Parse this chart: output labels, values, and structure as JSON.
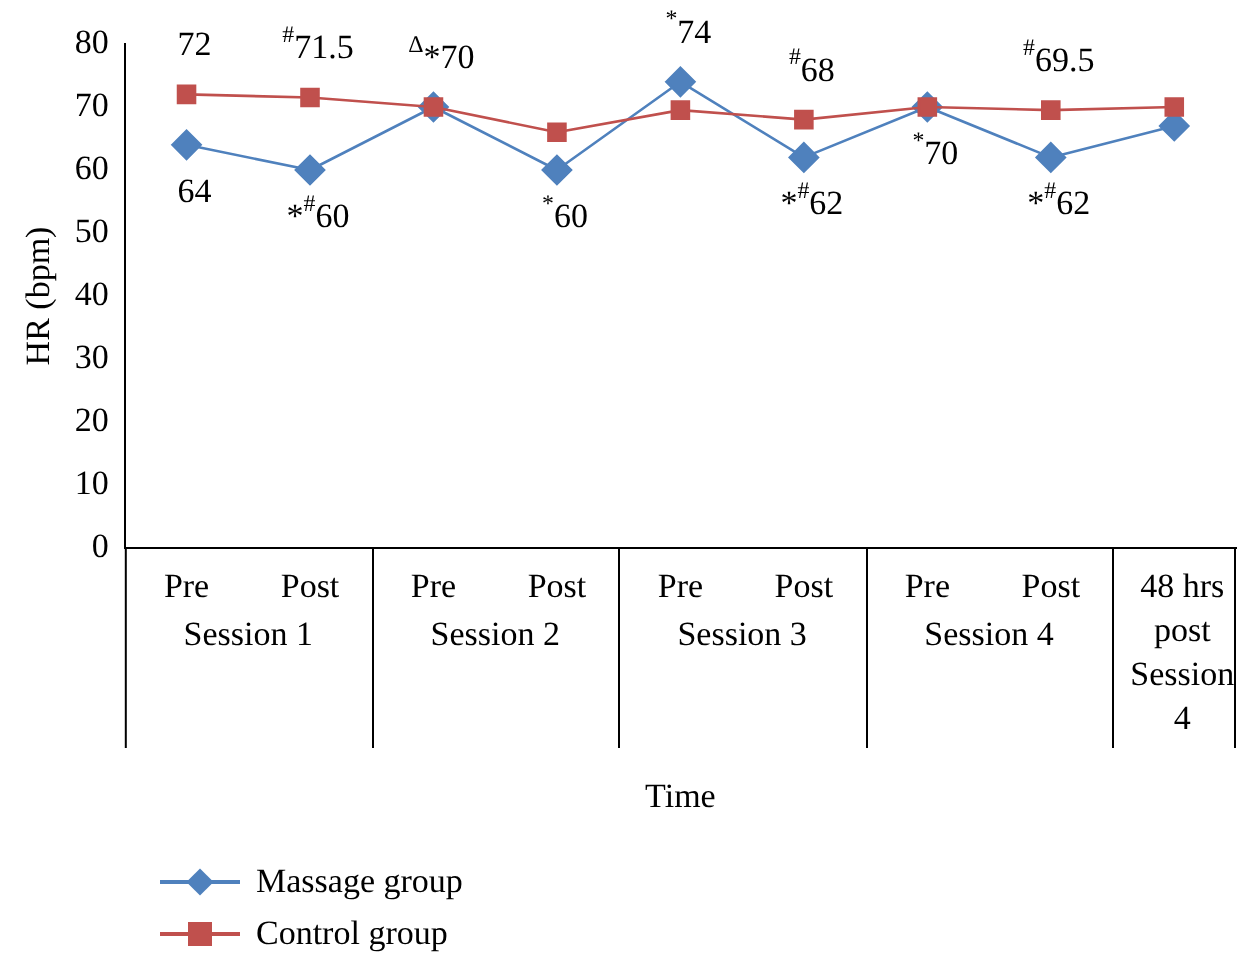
{
  "chart_data": {
    "type": "line",
    "xlabel": "Time",
    "ylabel": "HR (bpm)",
    "categories": [
      "Pre",
      "Post",
      "Pre",
      "Post",
      "Pre",
      "Post",
      "Pre",
      "Post",
      "48 hrs post Session 4"
    ],
    "annotations": [
      "Session 1",
      "Session 2",
      "Session 3",
      "Session 4"
    ],
    "ylim": [
      0,
      80
    ],
    "yticks": [
      0,
      10,
      20,
      30,
      40,
      50,
      60,
      70,
      80
    ],
    "grid": false,
    "legend": "bottom left",
    "series": [
      {
        "name": "Massage group",
        "color": "#4f81bd",
        "marker": "diamond",
        "values": [
          64,
          60,
          70,
          60,
          74,
          62,
          70,
          62,
          67
        ],
        "value_labels": [
          "64",
          "*$^{#}$60",
          null,
          "$^{*}$60",
          "$^{*}$74",
          "*$^{#}$62",
          "$^{*}$70",
          "*$^{#}$62",
          null
        ]
      },
      {
        "name": "Control group",
        "color": "#c0504d",
        "marker": "square",
        "values": [
          72,
          71.5,
          70,
          66,
          69.5,
          68,
          70,
          69.5,
          70
        ],
        "value_labels": [
          "72",
          "$^{#}$71.5",
          "$^{Δ}$*70",
          null,
          null,
          "$^{#}$68",
          null,
          "$^{#}$69.5",
          null
        ]
      }
    ]
  }
}
